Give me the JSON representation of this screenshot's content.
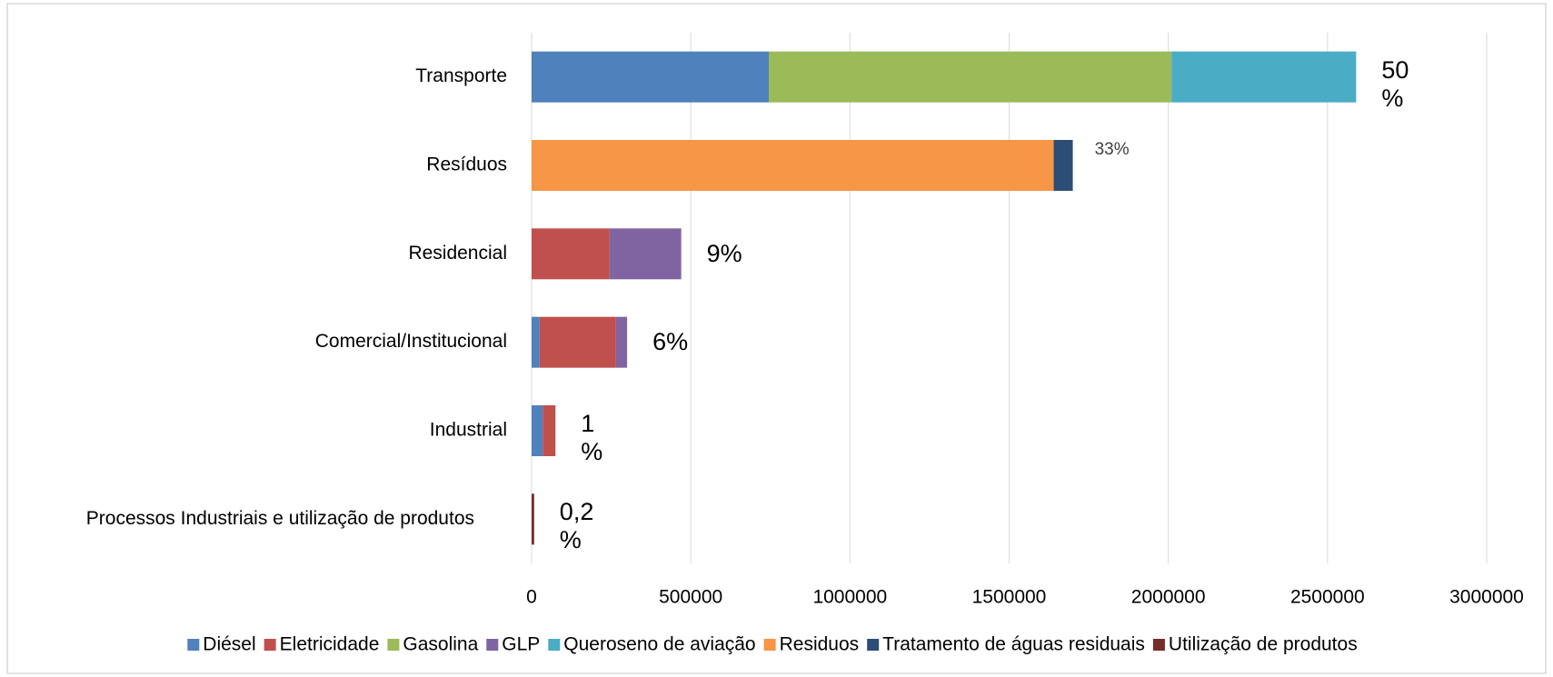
{
  "chart_data": {
    "type": "stacked_barh",
    "categories": [
      "Transporte",
      "Resíduos",
      "Residencial",
      "Comercial/Institucional",
      "Industrial",
      "Processos Industriais e utilização de produtos"
    ],
    "series": [
      {
        "name": "Diésel",
        "color": "#4f81bd",
        "values": [
          745000,
          null,
          null,
          25000,
          35000,
          null
        ]
      },
      {
        "name": "Eletricidade",
        "color": "#c0504d",
        "values": [
          null,
          null,
          245000,
          240000,
          40000,
          null
        ]
      },
      {
        "name": "Gasolina",
        "color": "#9bbb59",
        "values": [
          1265000,
          null,
          null,
          null,
          null,
          null
        ]
      },
      {
        "name": "GLP",
        "color": "#8064a2",
        "values": [
          null,
          null,
          225000,
          35000,
          null,
          null
        ]
      },
      {
        "name": "Queroseno de aviação",
        "color": "#4bacc6",
        "values": [
          580000,
          null,
          null,
          null,
          null,
          null
        ]
      },
      {
        "name": "Residuos",
        "color": "#f79646",
        "values": [
          null,
          1640000,
          null,
          null,
          null,
          null
        ]
      },
      {
        "name": "Tratamento de águas residuais",
        "color": "#2c4d75",
        "values": [
          null,
          60000,
          null,
          null,
          null,
          null
        ]
      },
      {
        "name": "Utilização de produtos",
        "color": "#772c2a",
        "values": [
          null,
          null,
          null,
          null,
          null,
          8000
        ]
      }
    ],
    "share_labels": [
      "50\n%",
      "33%",
      "9%",
      "6%",
      "1\n%",
      "0,2\n%"
    ],
    "xlim": [
      0,
      3000000
    ],
    "xticks": [
      0,
      500000,
      1000000,
      1500000,
      2000000,
      2500000,
      3000000
    ],
    "grid": true,
    "legend": "bottom"
  }
}
